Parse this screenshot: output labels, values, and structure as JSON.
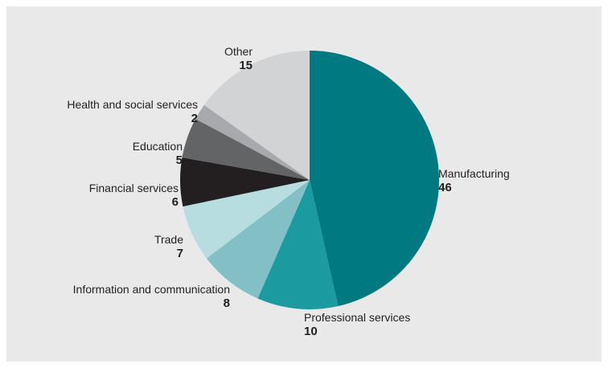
{
  "chart_data": {
    "type": "pie",
    "title": "",
    "unit": "",
    "start_angle_deg": 0,
    "direction": "clockwise",
    "slices": [
      {
        "label": "Manufacturing",
        "value": 46,
        "color": "#007a80"
      },
      {
        "label": "Professional services",
        "value": 10,
        "color": "#1b9aa0"
      },
      {
        "label": "Information and communication",
        "value": 8,
        "color": "#82c0c6"
      },
      {
        "label": "Trade",
        "value": 7,
        "color": "#b8dde0"
      },
      {
        "label": "Financial services",
        "value": 6,
        "color": "#231f20"
      },
      {
        "label": "Education",
        "value": 5,
        "color": "#636466"
      },
      {
        "label": "Health and social services",
        "value": 2,
        "color": "#a7a9ac"
      },
      {
        "label": "Other",
        "value": 15,
        "color": "#d2d3d5"
      }
    ],
    "background_color": "#e9e9ea",
    "legend": "none"
  }
}
